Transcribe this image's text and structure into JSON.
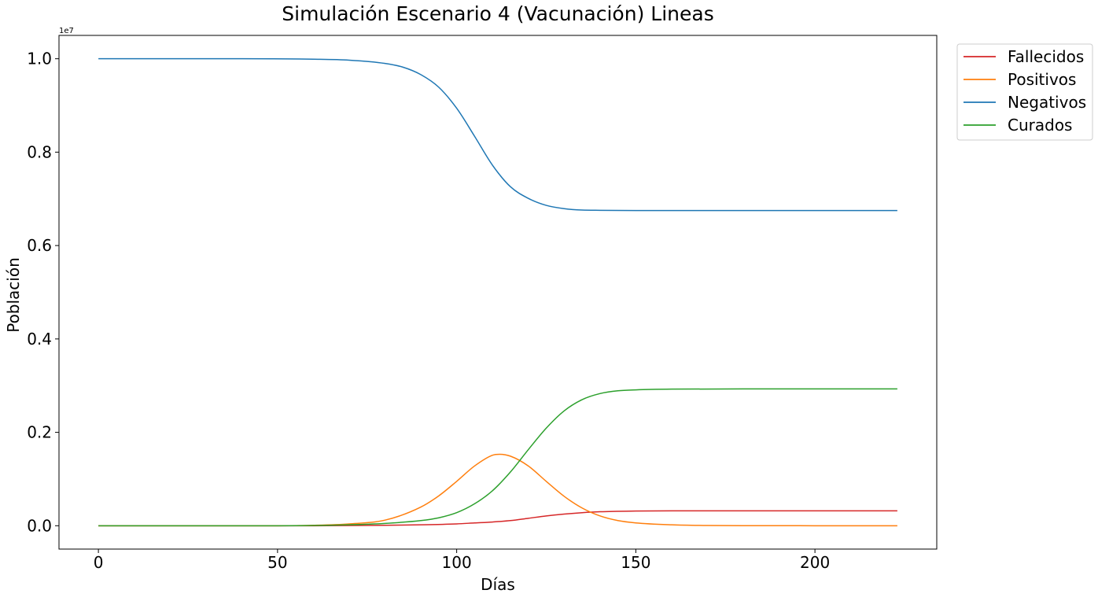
{
  "chart_data": {
    "type": "line",
    "title": "Simulación Escenario 4 (Vacunación) Lineas",
    "xlabel": "Días",
    "ylabel": "Población",
    "offset_label": "1e7",
    "xlim": [
      -11,
      234
    ],
    "ylim": [
      -0.05,
      1.05
    ],
    "y_multiplier": 10000000,
    "xticks": [
      0,
      50,
      100,
      150,
      200
    ],
    "xtick_labels": [
      "0",
      "50",
      "100",
      "150",
      "200"
    ],
    "yticks": [
      0.0,
      0.2,
      0.4,
      0.6,
      0.8,
      1.0
    ],
    "ytick_labels": [
      "0.0",
      "0.2",
      "0.4",
      "0.6",
      "0.8",
      "1.0"
    ],
    "grid": false,
    "legend_position": "outside-top-right",
    "series": [
      {
        "name": "Fallecidos",
        "color": "#d62728",
        "x": [
          0,
          60,
          80,
          90,
          100,
          105,
          110,
          115,
          120,
          125,
          130,
          135,
          140,
          150,
          160,
          180,
          200,
          223
        ],
        "y": [
          0.0,
          0.0,
          0.001,
          0.002,
          0.004,
          0.006,
          0.008,
          0.011,
          0.016,
          0.021,
          0.025,
          0.028,
          0.03,
          0.0315,
          0.032,
          0.032,
          0.032,
          0.032
        ]
      },
      {
        "name": "Positivos",
        "color": "#ff7f0e",
        "x": [
          0,
          50,
          60,
          70,
          80,
          90,
          95,
          100,
          105,
          110,
          112,
          115,
          120,
          125,
          130,
          135,
          140,
          145,
          150,
          160,
          170,
          180,
          200,
          223
        ],
        "y": [
          0.0,
          0.0,
          0.001,
          0.004,
          0.012,
          0.04,
          0.064,
          0.095,
          0.128,
          0.151,
          0.153,
          0.149,
          0.128,
          0.095,
          0.063,
          0.038,
          0.021,
          0.011,
          0.006,
          0.002,
          0.0005,
          0.0002,
          0.0,
          0.0
        ]
      },
      {
        "name": "Negativos",
        "color": "#1f77b4",
        "x": [
          0,
          20,
          40,
          60,
          70,
          80,
          85,
          90,
          95,
          100,
          105,
          110,
          115,
          120,
          125,
          130,
          135,
          140,
          150,
          160,
          180,
          200,
          223
        ],
        "y": [
          1.0,
          1.0,
          1.0,
          0.999,
          0.997,
          0.99,
          0.982,
          0.966,
          0.939,
          0.894,
          0.834,
          0.772,
          0.726,
          0.701,
          0.686,
          0.679,
          0.676,
          0.6755,
          0.675,
          0.675,
          0.675,
          0.675,
          0.675
        ]
      },
      {
        "name": "Curados",
        "color": "#2ca02c",
        "x": [
          0,
          50,
          60,
          70,
          80,
          90,
          95,
          100,
          105,
          110,
          115,
          120,
          125,
          130,
          135,
          140,
          145,
          150,
          160,
          180,
          200,
          223
        ],
        "y": [
          0.0,
          0.0,
          0.0005,
          0.002,
          0.005,
          0.011,
          0.017,
          0.028,
          0.047,
          0.075,
          0.115,
          0.163,
          0.209,
          0.246,
          0.27,
          0.283,
          0.289,
          0.291,
          0.2925,
          0.293,
          0.293,
          0.293
        ]
      }
    ]
  }
}
